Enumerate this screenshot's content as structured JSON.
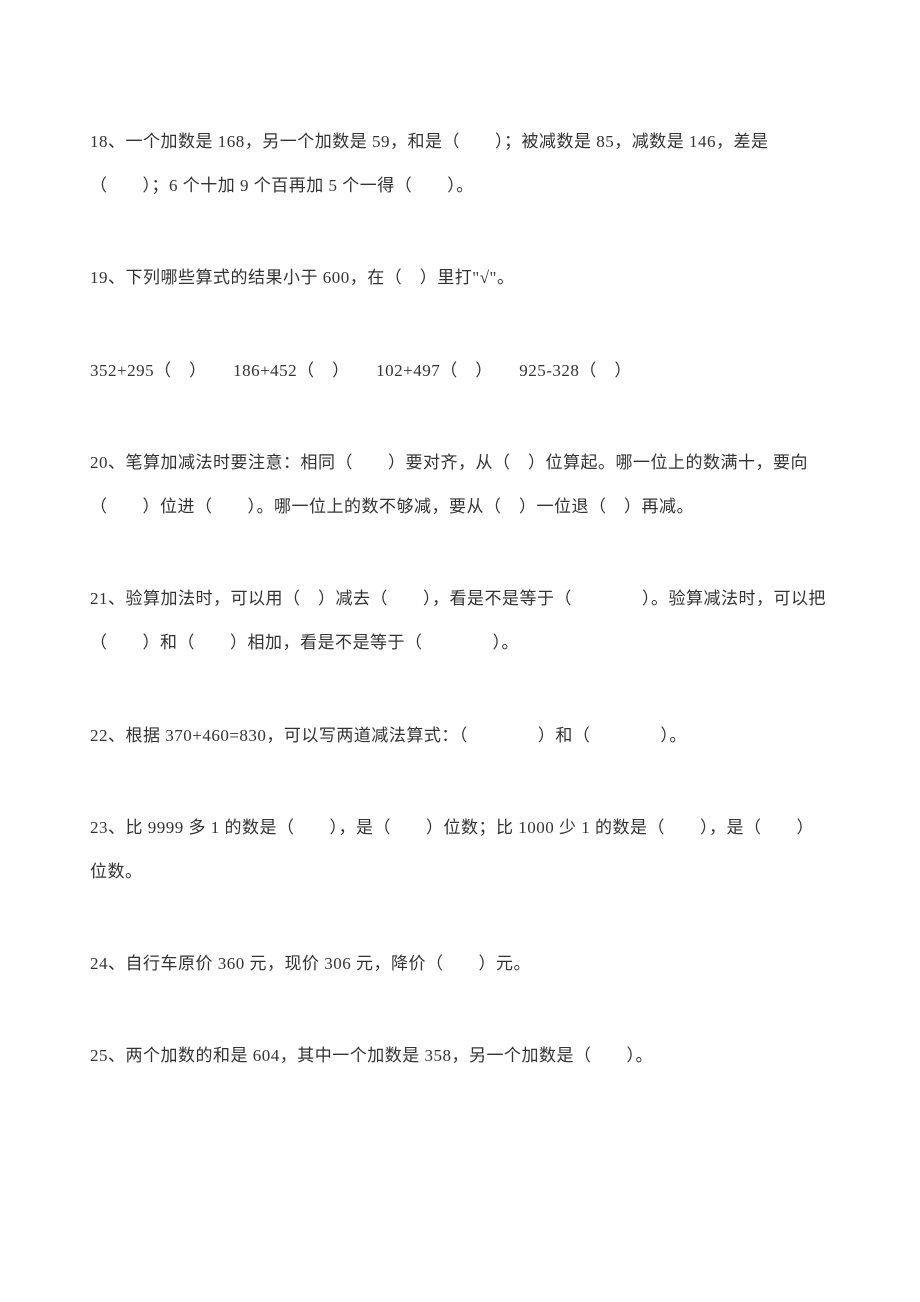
{
  "text_color": "#333333",
  "background_color": "#ffffff",
  "font_size": 17,
  "line_height": 2.6,
  "questions": {
    "q18": "18、一个加数是 168，另一个加数是 59，和是（　　）；被减数是 85，减数是 146，差是（　　）；6 个十加 9 个百再加 5 个一得（　　）。",
    "q19": "19、下列哪些算式的结果小于 600，在（　）里打\"√\"。",
    "q19_options": "352+295（　）　　186+452（　）　　102+497（　）　　925-328（　）",
    "q20": "20、笔算加减法时要注意：相同（　　）要对齐，从（　）位算起。哪一位上的数满十，要向（　　）位进（　　）。哪一位上的数不够减，要从（　）一位退（　）再减。",
    "q21": "21、验算加法时，可以用（　）减去（　　），看是不是等于（　　　　）。验算减法时，可以把（　　）和（　　）相加，看是不是等于（　　　　）。",
    "q22": "22、根据 370+460=830，可以写两道减法算式：（　　　　）和（　　　　）。",
    "q23": "23、比 9999 多 1 的数是（　　），是（　　）位数；比 1000 少 1 的数是（　　），是（　　）位数。",
    "q24": "24、自行车原价 360 元，现价 306 元，降价（　　）元。",
    "q25": "25、两个加数的和是 604，其中一个加数是 358，另一个加数是（　　）。"
  }
}
